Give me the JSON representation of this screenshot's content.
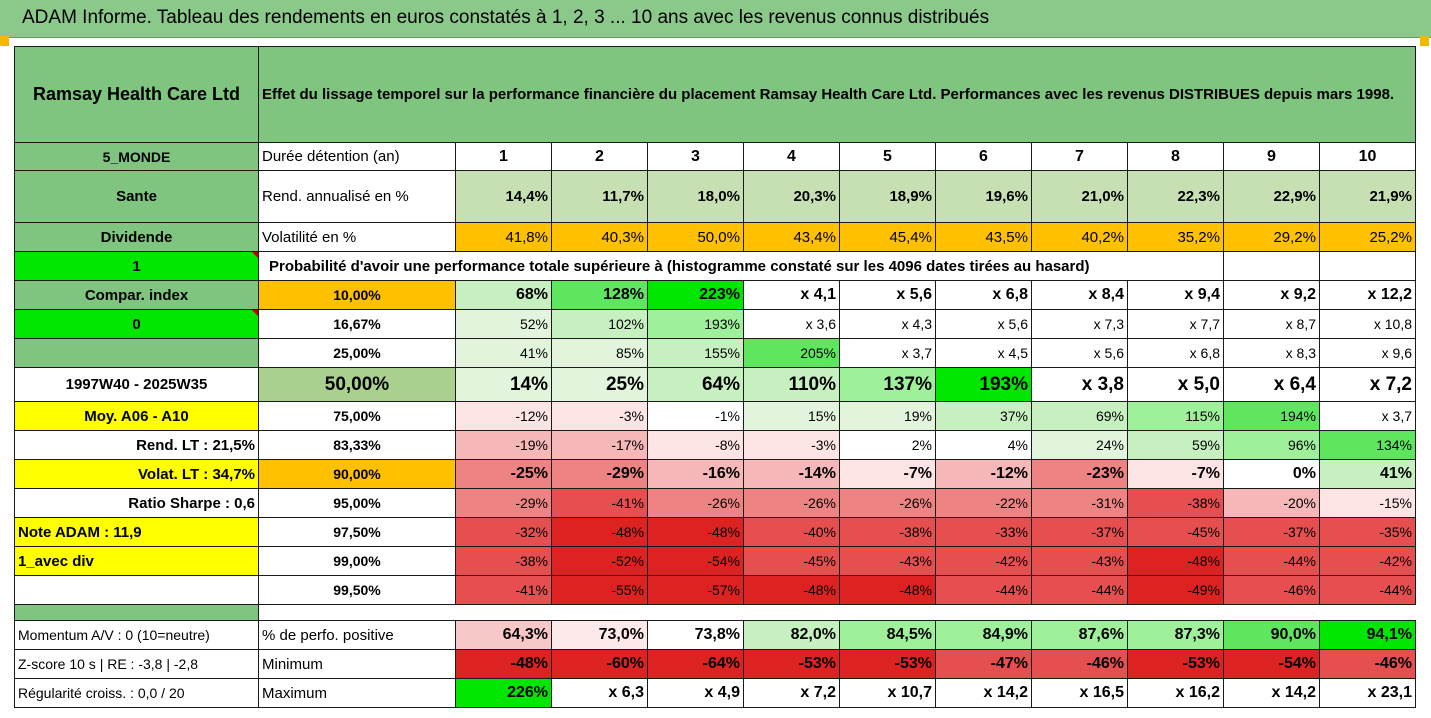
{
  "banner_title": "ADAM Informe. Tableau des rendements en euros constatés à 1, 2, 3 ... 10 ans avec les revenus connus distribués",
  "colors": {
    "banner": "#8bc98b",
    "label_green": "#7fc47f",
    "pale_green": "#c6e0b4",
    "bright_green": "#00e600",
    "orange": "#ffc000",
    "yellow": "#ffff00",
    "red_text": "#d40000"
  },
  "header": {
    "company": "Ramsay Health Care Ltd",
    "description": "Effet du lissage temporel sur la performance financière du placement Ramsay Health Care Ltd. Performances avec les revenus DISTRIBUES depuis mars 1998."
  },
  "years_row": {
    "left": "5_MONDE",
    "label": "Durée détention (an)",
    "years": [
      "1",
      "2",
      "3",
      "4",
      "5",
      "6",
      "7",
      "8",
      "9",
      "10"
    ]
  },
  "rend_row": {
    "left": "Sante",
    "label": "Rend. annualisé en %",
    "values": [
      "14,4%",
      "11,7%",
      "18,0%",
      "20,3%",
      "18,9%",
      "19,6%",
      "21,0%",
      "22,3%",
      "22,9%",
      "21,9%"
    ]
  },
  "vol_row": {
    "left": "Dividende",
    "label": "Volatilité en %",
    "values": [
      "41,8%",
      "40,3%",
      "50,0%",
      "43,4%",
      "45,4%",
      "43,5%",
      "40,2%",
      "35,2%",
      "29,2%",
      "25,2%"
    ]
  },
  "prob_row": {
    "left": "1",
    "text": "Probabilité d'avoir une performance totale supérieure à (histogramme constaté sur les 4096 dates tirées au hasard)"
  },
  "side_labels": [
    "Compar. index",
    "0",
    "",
    "1997W40 - 2025W35",
    "Moy. A06 - A10",
    "Rend. LT :   21,5%",
    "Volat. LT :   34,7%",
    "Ratio Sharpe :    0,6",
    "Note ADAM : 11,9",
    "1_avec div",
    ""
  ],
  "percentile_rows": [
    {
      "pct": "10,00%",
      "values": [
        "68%",
        "128%",
        "223%",
        "x 4,1",
        "x 5,6",
        "x 6,8",
        "x 8,4",
        "x 9,4",
        "x 9,2",
        "x 12,2"
      ]
    },
    {
      "pct": "16,67%",
      "values": [
        "52%",
        "102%",
        "193%",
        "x 3,6",
        "x 4,3",
        "x 5,6",
        "x 7,3",
        "x 7,7",
        "x 8,7",
        "x 10,8"
      ]
    },
    {
      "pct": "25,00%",
      "values": [
        "41%",
        "85%",
        "155%",
        "205%",
        "x 3,7",
        "x 4,5",
        "x 5,6",
        "x 6,8",
        "x 8,3",
        "x 9,6"
      ]
    },
    {
      "pct": "50,00%",
      "values": [
        "14%",
        "25%",
        "64%",
        "110%",
        "137%",
        "193%",
        "x 3,8",
        "x 5,0",
        "x 6,4",
        "x 7,2"
      ]
    },
    {
      "pct": "75,00%",
      "values": [
        "-12%",
        "-3%",
        "-1%",
        "15%",
        "19%",
        "37%",
        "69%",
        "115%",
        "194%",
        "x 3,7"
      ]
    },
    {
      "pct": "83,33%",
      "values": [
        "-19%",
        "-17%",
        "-8%",
        "-3%",
        "2%",
        "4%",
        "24%",
        "59%",
        "96%",
        "134%"
      ]
    },
    {
      "pct": "90,00%",
      "values": [
        "-25%",
        "-29%",
        "-16%",
        "-14%",
        "-7%",
        "-12%",
        "-23%",
        "-7%",
        "0%",
        "41%"
      ]
    },
    {
      "pct": "95,00%",
      "values": [
        "-29%",
        "-41%",
        "-26%",
        "-26%",
        "-26%",
        "-22%",
        "-31%",
        "-38%",
        "-20%",
        "-15%"
      ]
    },
    {
      "pct": "97,50%",
      "values": [
        "-32%",
        "-48%",
        "-48%",
        "-40%",
        "-38%",
        "-33%",
        "-37%",
        "-45%",
        "-37%",
        "-35%"
      ]
    },
    {
      "pct": "99,00%",
      "values": [
        "-38%",
        "-52%",
        "-54%",
        "-45%",
        "-43%",
        "-42%",
        "-43%",
        "-48%",
        "-44%",
        "-42%"
      ]
    },
    {
      "pct": "99,50%",
      "values": [
        "-41%",
        "-55%",
        "-57%",
        "-48%",
        "-48%",
        "-44%",
        "-44%",
        "-49%",
        "-46%",
        "-44%"
      ]
    }
  ],
  "bottom_rows": [
    {
      "left": "Momentum A/V : 0 (10=neutre)",
      "label": "% de perfo. positive",
      "values": [
        "64,3%",
        "73,0%",
        "73,8%",
        "82,0%",
        "84,5%",
        "84,9%",
        "87,6%",
        "87,3%",
        "90,0%",
        "94,1%"
      ]
    },
    {
      "left": "Z-score 10 s  |  RE : -3,8  | -2,8",
      "label": "Minimum",
      "values": [
        "-48%",
        "-60%",
        "-64%",
        "-53%",
        "-53%",
        "-47%",
        "-46%",
        "-53%",
        "-54%",
        "-46%"
      ]
    },
    {
      "left": "Régularité croiss. : 0,0 / 20",
      "label": "Maximum",
      "values": [
        "226%",
        "x 6,3",
        "x 4,9",
        "x 7,2",
        "x 10,7",
        "x 14,2",
        "x 16,5",
        "x 16,2",
        "x 14,2",
        "x 23,1"
      ]
    }
  ]
}
